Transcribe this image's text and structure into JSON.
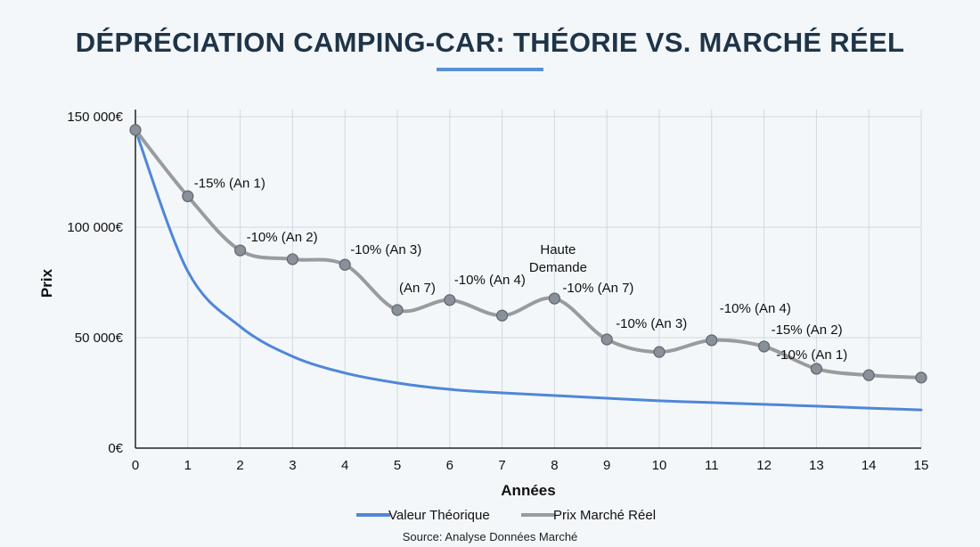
{
  "chart_data": {
    "type": "line",
    "title": "DÉPRÉCIATION CAMPING-CAR: THÉORIE VS. MARCHÉ RÉEL",
    "xlabel": "Années",
    "ylabel": "Prix",
    "x": [
      0,
      1,
      2,
      3,
      4,
      5,
      6,
      7,
      8,
      9,
      10,
      11,
      12,
      13,
      14,
      15
    ],
    "xlim": [
      0,
      15
    ],
    "ylim": [
      0,
      150000
    ],
    "y_ticks": [
      0,
      50000,
      100000,
      150000
    ],
    "y_tick_labels": [
      "0€",
      "50 000€",
      "100 000€",
      "150 000€"
    ],
    "grid": true,
    "legend_position": "bottom",
    "series": [
      {
        "name": "Valeur Théorique",
        "color": "#4f86d8",
        "values": [
          144000,
          80000,
          55000,
          41500,
          34000,
          29500,
          26600,
          25000,
          23800,
          22600,
          21400,
          20600,
          19800,
          19000,
          18100,
          17300
        ]
      },
      {
        "name": "Prix Marché Réel",
        "color": "#999c9f",
        "marker_color": "#8a9098",
        "values": [
          144000,
          114000,
          89500,
          85500,
          83000,
          62500,
          67000,
          60000,
          67700,
          49200,
          43500,
          48800,
          46000,
          35900,
          33000,
          31900
        ]
      }
    ],
    "annotations": [
      {
        "x": 1,
        "text": "-15% (An 1)"
      },
      {
        "x": 2,
        "text": "-10% (An 2)"
      },
      {
        "x": 4,
        "text": "-10% (An 3)"
      },
      {
        "x": 5,
        "text": "(An 7)"
      },
      {
        "x": 6,
        "text": "-10% (An 4)"
      },
      {
        "x": 8,
        "text": "Haute"
      },
      {
        "x": 8,
        "text": "Demande"
      },
      {
        "x": 8,
        "text": "-10% (An 7)"
      },
      {
        "x": 9,
        "text": "-10% (An 3)"
      },
      {
        "x": 11,
        "text": "-10% (An 4)"
      },
      {
        "x": 12,
        "text": "-15% (An 2)"
      },
      {
        "x": 14,
        "text": "-10% (An 1)"
      }
    ],
    "source": "Source: Analyse Données Marché"
  }
}
